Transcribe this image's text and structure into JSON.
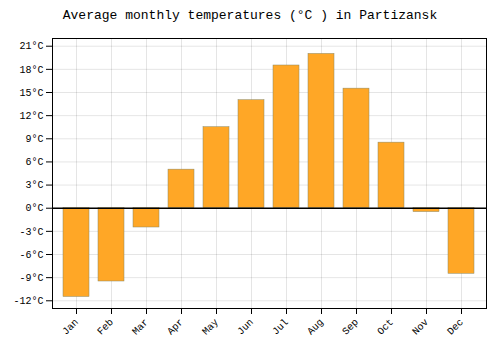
{
  "chart_data": {
    "type": "bar",
    "title": "Average monthly temperatures (°C ) in Partizansk",
    "categories": [
      "Jan",
      "Feb",
      "Mar",
      "Apr",
      "May",
      "Jun",
      "Jul",
      "Aug",
      "Sep",
      "Oct",
      "Nov",
      "Dec"
    ],
    "values": [
      -11.5,
      -9.5,
      -2.5,
      5.0,
      10.5,
      14.0,
      18.5,
      20.0,
      15.5,
      8.5,
      -0.5,
      -8.5
    ],
    "color": "#FFA726",
    "ylim": [
      -13,
      22
    ],
    "yticks": [
      {
        "value": -12,
        "label": "-12°C"
      },
      {
        "value": -9,
        "label": "-9°C"
      },
      {
        "value": -6,
        "label": "-6°C"
      },
      {
        "value": -3,
        "label": "-3°C"
      },
      {
        "value": 0,
        "label": "0°C"
      },
      {
        "value": 3,
        "label": "3°C"
      },
      {
        "value": 6,
        "label": "6°C"
      },
      {
        "value": 9,
        "label": "9°C"
      },
      {
        "value": 12,
        "label": "12°C"
      },
      {
        "value": 15,
        "label": "15°C"
      },
      {
        "value": 18,
        "label": "18°C"
      },
      {
        "value": 21,
        "label": "21°C"
      }
    ],
    "grid": true
  }
}
